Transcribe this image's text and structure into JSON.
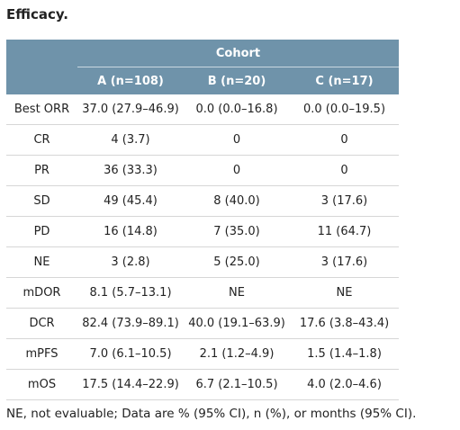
{
  "caption": "Efficacy.",
  "table": {
    "group_header": "Cohort",
    "columns": [
      "A (n=108)",
      "B (n=20)",
      "C (n=17)"
    ],
    "rows": [
      {
        "label": "Best ORR",
        "values": [
          "37.0 (27.9–46.9)",
          "0.0 (0.0–16.8)",
          "0.0 (0.0–19.5)"
        ]
      },
      {
        "label": "CR",
        "values": [
          "4 (3.7)",
          "0",
          "0"
        ]
      },
      {
        "label": "PR",
        "values": [
          "36 (33.3)",
          "0",
          "0"
        ]
      },
      {
        "label": "SD",
        "values": [
          "49 (45.4)",
          "8 (40.0)",
          "3 (17.6)"
        ]
      },
      {
        "label": "PD",
        "values": [
          "16 (14.8)",
          "7 (35.0)",
          "11 (64.7)"
        ]
      },
      {
        "label": "NE",
        "values": [
          "3 (2.8)",
          "5 (25.0)",
          "3 (17.6)"
        ]
      },
      {
        "label": "mDOR",
        "values": [
          "8.1 (5.7–13.1)",
          "NE",
          "NE"
        ]
      },
      {
        "label": "DCR",
        "values": [
          "82.4 (73.9–89.1)",
          "40.0 (19.1–63.9)",
          "17.6 (3.8–43.4)"
        ]
      },
      {
        "label": "mPFS",
        "values": [
          "7.0 (6.1–10.5)",
          "2.1 (1.2–4.9)",
          "1.5 (1.4–1.8)"
        ]
      },
      {
        "label": "mOS",
        "values": [
          "17.5 (14.4–22.9)",
          "6.7 (2.1–10.5)",
          "4.0 (2.0–4.6)"
        ]
      }
    ]
  },
  "footnote": "NE, not evaluable; Data are % (95% CI), n (%), or months (95% CI).",
  "colors": {
    "header_bg": "#6f93aa",
    "header_text": "#ffffff",
    "row_divider": "#d6d6d6"
  }
}
